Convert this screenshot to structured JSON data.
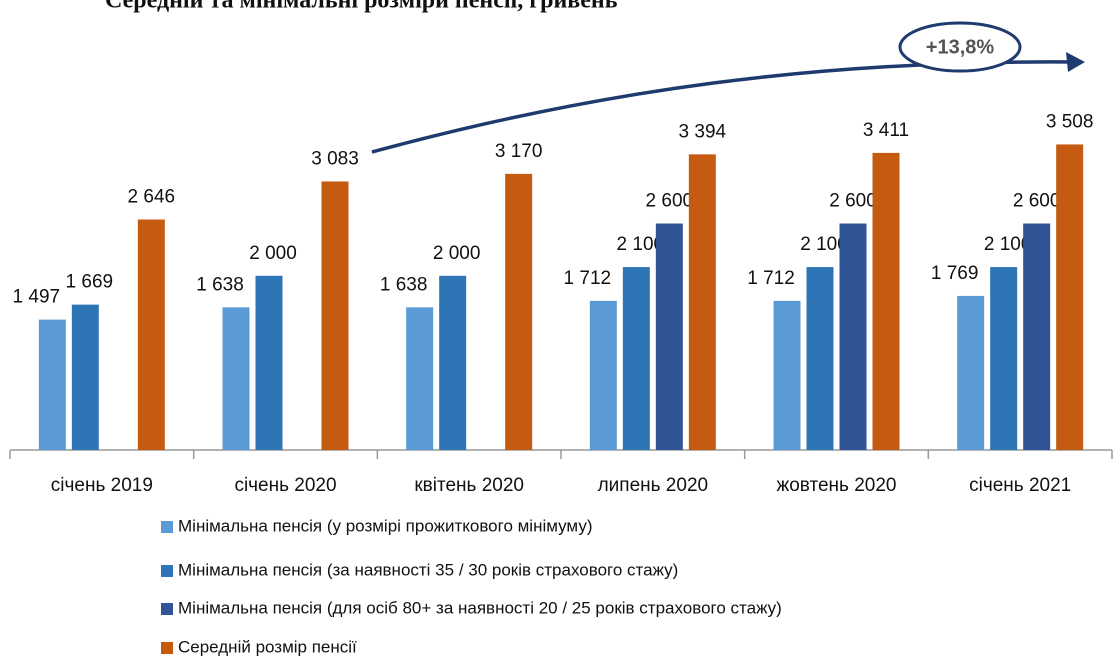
{
  "chart_data": {
    "type": "bar",
    "title": "Середній та мінімальні розміри пенсії, гривень",
    "annotation": "+13,8%",
    "categories": [
      "січень 2019",
      "січень 2020",
      "квітень 2020",
      "липень 2020",
      "жовтень 2020",
      "січень 2021"
    ],
    "series": [
      {
        "name": "Мінімальна пенсія (у розмірі прожиткового мінімуму)",
        "color": "#5b9bd5",
        "values": [
          1497,
          1638,
          1638,
          1712,
          1712,
          1769
        ],
        "value_labels": [
          "1 497",
          "1 638",
          "1 638",
          "1 712",
          "1 712",
          "1 769"
        ]
      },
      {
        "name": "Мінімальна пенсія (за наявності 35 / 30 років страхового стажу)",
        "color": "#2e75b6",
        "values": [
          1669,
          2000,
          2000,
          2100,
          2100,
          2100
        ],
        "value_labels": [
          "1 669",
          "2 000",
          "2 000",
          "2 100",
          "2 100",
          "2 100"
        ]
      },
      {
        "name": "Мінімальна пенсія (для осіб 80+ за наявності 20 / 25 років страхового стажу)",
        "color": "#2f5597",
        "values": [
          null,
          null,
          null,
          2600,
          2600,
          2600
        ],
        "value_labels": [
          null,
          null,
          null,
          "2 600",
          "2 600",
          "2 600"
        ]
      },
      {
        "name": "Середній розмір пенсії",
        "color": "#c55a11",
        "values": [
          2646,
          3083,
          3170,
          3394,
          3411,
          3508
        ],
        "value_labels": [
          "2 646",
          "3 083",
          "3 170",
          "3 394",
          "3 411",
          "3 508"
        ]
      }
    ],
    "ylim": [
      0,
      3800
    ]
  }
}
